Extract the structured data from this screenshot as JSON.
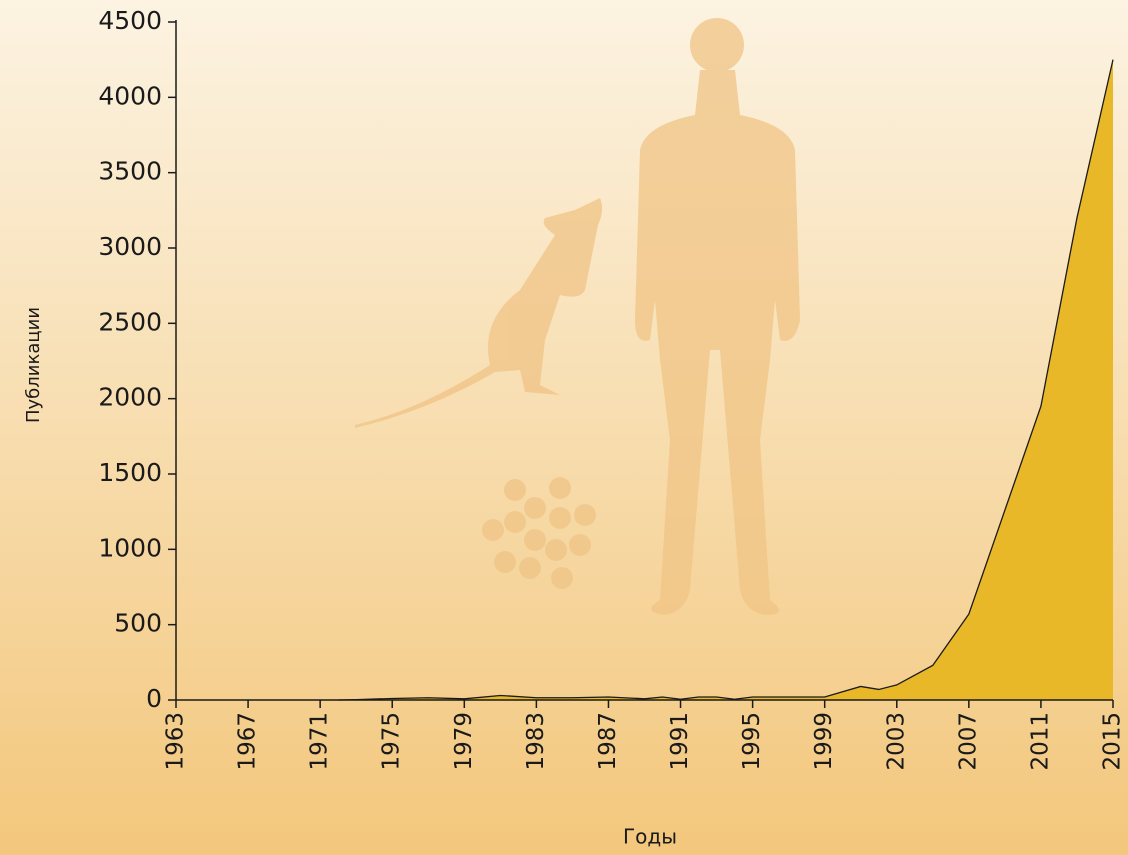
{
  "chart_data": {
    "type": "area",
    "x_label": "Годы",
    "y_label": "Публикации",
    "x": [
      1972,
      1973,
      1975,
      1977,
      1979,
      1981,
      1983,
      1985,
      1987,
      1989,
      1990,
      1991,
      1992,
      1993,
      1994,
      1995,
      1997,
      1999,
      2001,
      2002,
      2003,
      2005,
      2007,
      2011,
      2013,
      2015
    ],
    "values": [
      0,
      2,
      10,
      15,
      8,
      30,
      15,
      15,
      20,
      8,
      20,
      5,
      20,
      20,
      5,
      20,
      20,
      20,
      90,
      70,
      100,
      230,
      570,
      1950,
      3200,
      4250
    ],
    "color": "#e9b828",
    "xlim": [
      1963,
      2015
    ],
    "xticks": [
      1963,
      1967,
      1971,
      1975,
      1979,
      1983,
      1987,
      1991,
      1995,
      1999,
      2003,
      2007,
      2011,
      2015
    ],
    "ylim": [
      0,
      4500
    ],
    "yticks": [
      0,
      500,
      1000,
      1500,
      2000,
      2500,
      3000,
      3500,
      4000,
      4500
    ]
  }
}
